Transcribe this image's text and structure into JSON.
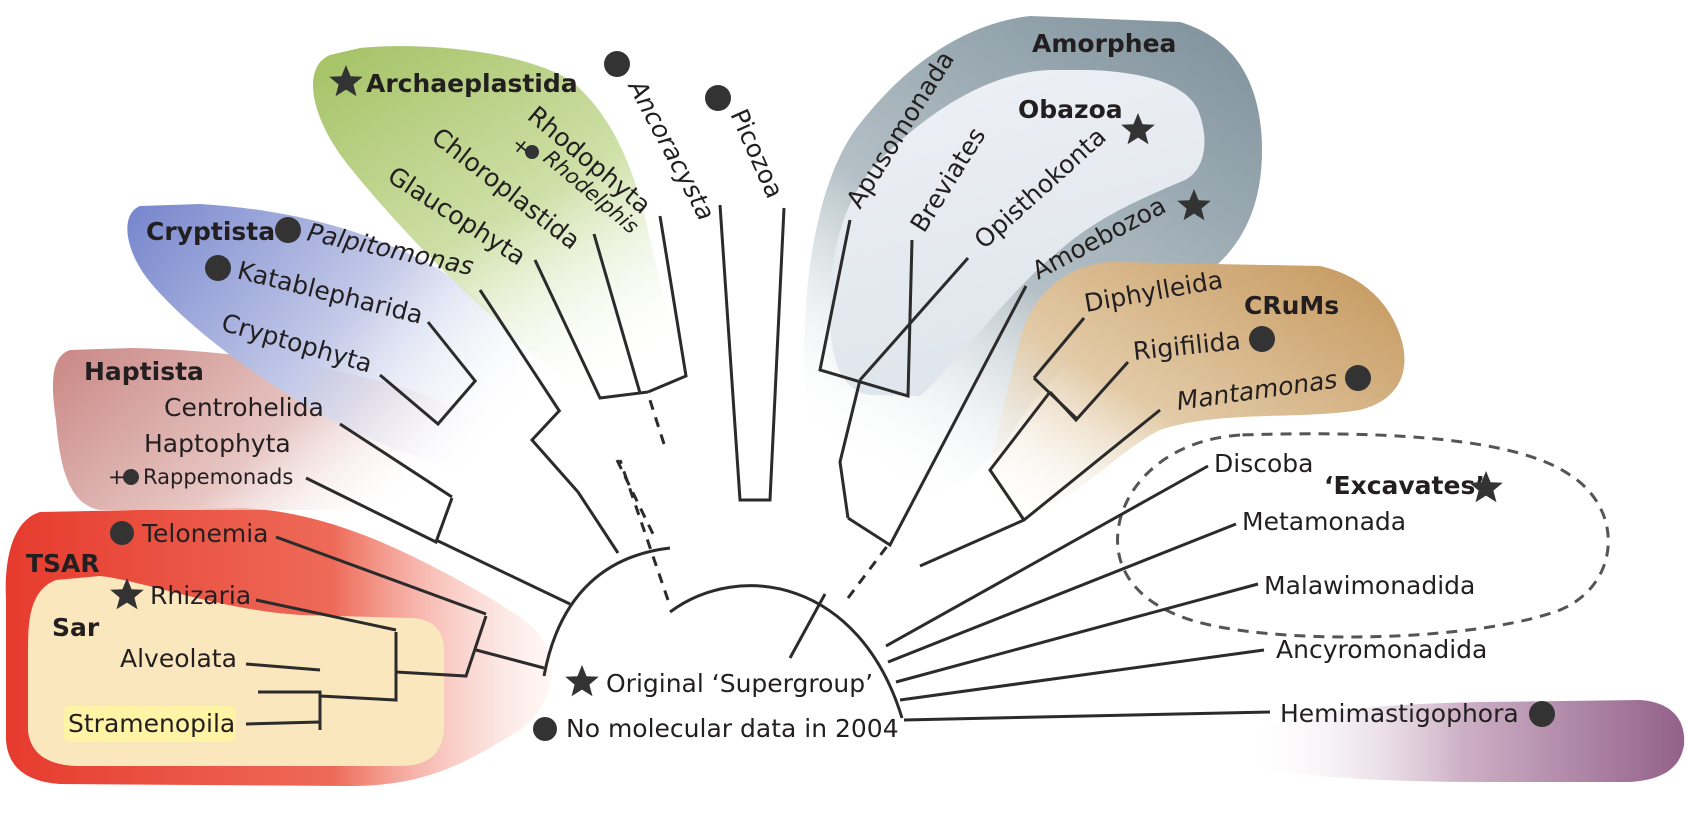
{
  "groups": {
    "tsar": "TSAR",
    "sar": "Sar",
    "haptista": "Haptista",
    "cryptista": "Cryptista",
    "archaeplastida": "Archaeplastida",
    "amorphea": "Amorphea",
    "obazoa": "Obazoa",
    "crums": "CRuMs",
    "excavates": "‘Excavates’"
  },
  "taxa": {
    "telonemia": "Telonemia",
    "rhizaria": "Rhizaria",
    "alveolata": "Alveolata",
    "stramenopila": "Stramenopila",
    "centrohelida": "Centrohelida",
    "haptophyta": "Haptophyta",
    "rappemonads": "Rappemonads",
    "rappemonads_prefix": "+",
    "palpitomonas": "Palpitomonas",
    "katablepharida": "Katablepharida",
    "cryptophyta": "Cryptophyta",
    "glaucophyta": "Glaucophyta",
    "chloroplastida": "Chloroplastida",
    "rhodophyta": "Rhodophyta",
    "rhodelphis": "Rhodelphis",
    "rhodelphis_prefix": "+",
    "ancoracysta": "Ancoracysta",
    "picozoa": "Picozoa",
    "apusomonada": "Apusomonada",
    "breviates": "Breviates",
    "opisthokonta": "Opisthokonta",
    "amoebozoa": "Amoebozoa",
    "diphylleida": "Diphylleida",
    "rigifilida": "Rigifilida",
    "mantamonas": "Mantamonas",
    "discoba": "Discoba",
    "metamonada": "Metamonada",
    "malawimonadida": "Malawimonadida",
    "ancyromonadida": "Ancyromonadida",
    "hemimastigophora": "Hemimastigophora"
  },
  "legend": {
    "star_label": "Original ‘Supergroup’",
    "dot_label": "No molecular data in 2004",
    "star_icon": "star-icon",
    "dot_icon": "dot-icon"
  },
  "colors": {
    "tsar": "#e8392a",
    "sar": "#fbe8bf",
    "haptista": "#cc8a87",
    "cryptista": "#7c8bcf",
    "archaeplastida": "#a9c66c",
    "amorphea": "#8ea0a8",
    "obazoa": "#e9edf3",
    "crums": "#c79a5d",
    "hemimastigophora": "#9a6a8d",
    "line": "#2b2b2b"
  }
}
